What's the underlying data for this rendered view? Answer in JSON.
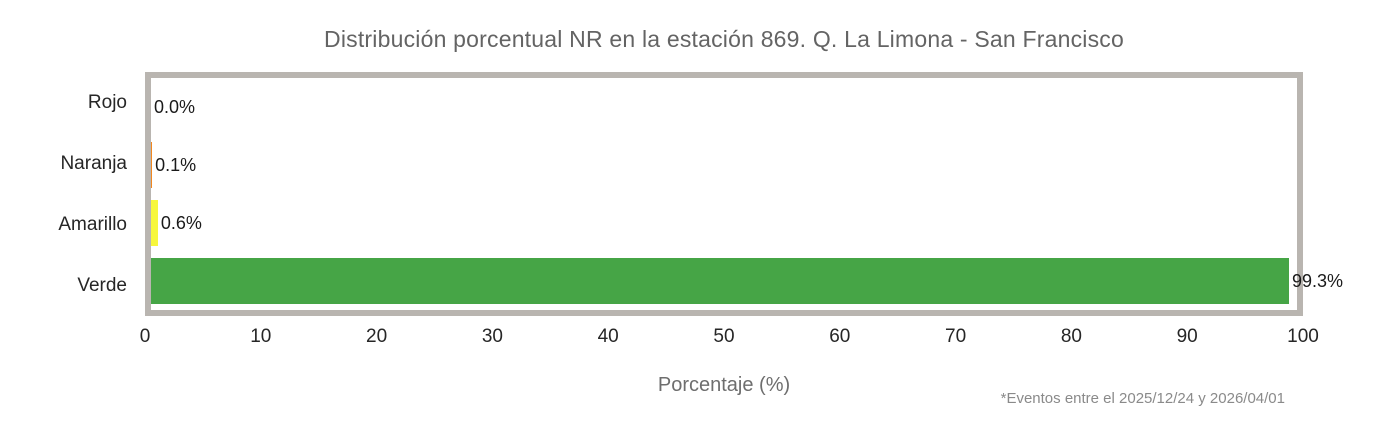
{
  "title": "Distribución porcentual NR en la estación 869. Q. La Limona - San Francisco",
  "xlabel": "Porcentaje (%)",
  "footnote": "*Eventos entre el 2025/12/24 y 2026/04/01",
  "colors": {
    "frame_border": "#b9b5b0",
    "title_text": "#646464",
    "rojo": "#e03c31",
    "naranja": "#f2871f",
    "amarillo": "#f7f73c",
    "verde": "#46a546"
  },
  "chart_data": {
    "type": "bar",
    "orientation": "horizontal",
    "title": "Distribución porcentual NR en la estación 869. Q. La Limona - San Francisco",
    "categories": [
      "Rojo",
      "Naranja",
      "Amarillo",
      "Verde"
    ],
    "values": [
      0.0,
      0.1,
      0.6,
      99.3
    ],
    "value_labels": [
      "0.0%",
      "0.1%",
      "0.6%",
      "99.3%"
    ],
    "bar_colors": [
      "#e03c31",
      "#f2871f",
      "#f7f73c",
      "#46a546"
    ],
    "xlabel": "Porcentaje (%)",
    "ylabel": "",
    "xlim": [
      0,
      100
    ],
    "xticks": [
      0,
      10,
      20,
      30,
      40,
      50,
      60,
      70,
      80,
      90,
      100
    ],
    "grid": false,
    "legend": false,
    "annotation": "*Eventos entre el 2025/12/24 y 2026/04/01"
  }
}
